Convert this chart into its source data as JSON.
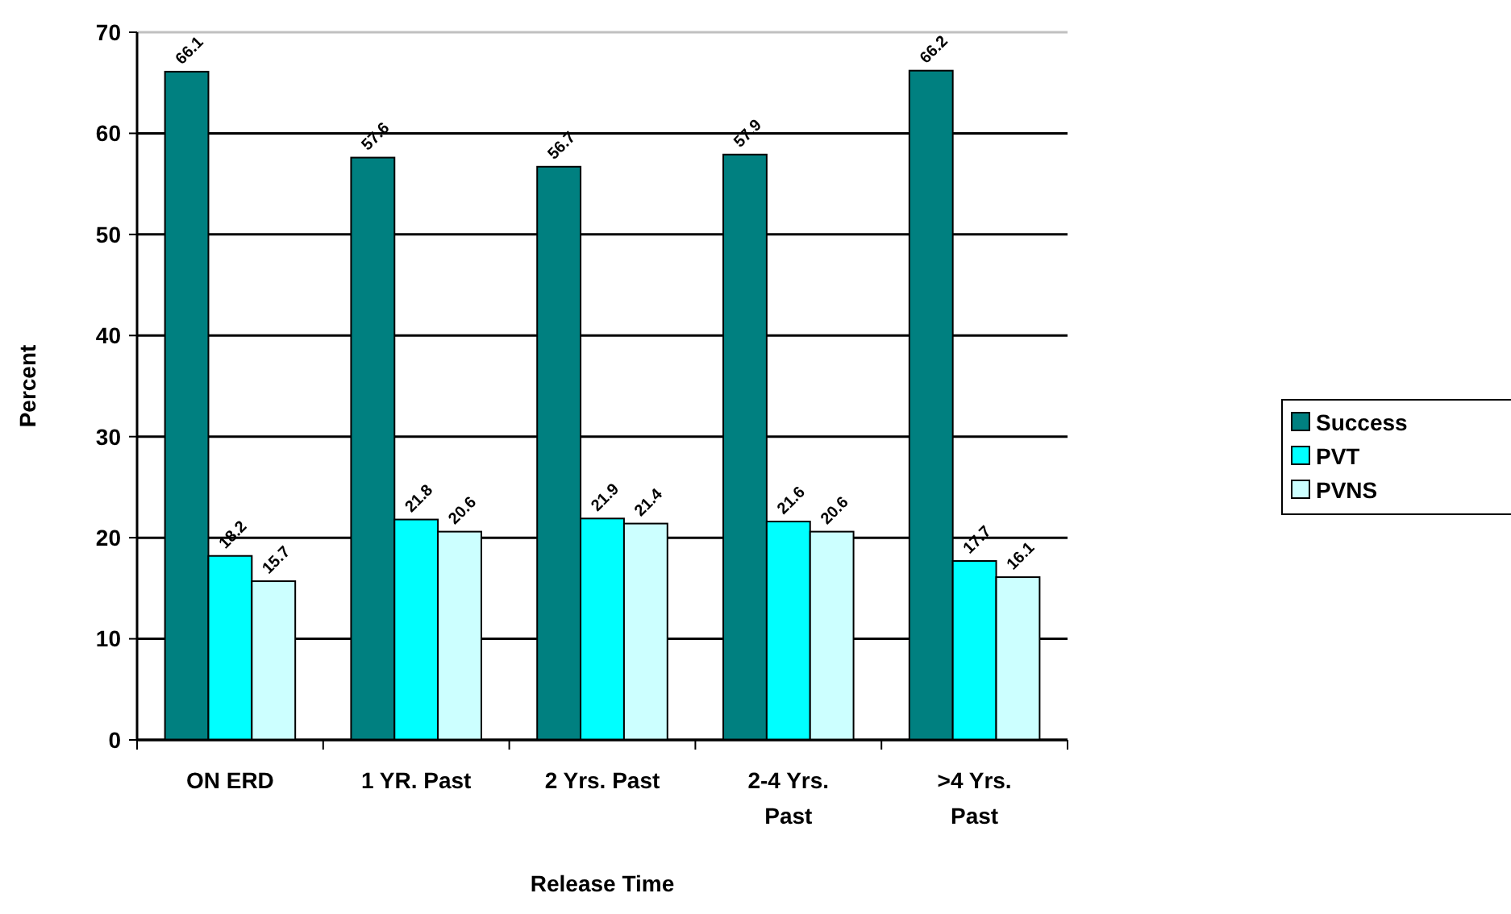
{
  "chart_data": {
    "type": "bar",
    "xlabel": "Release Time",
    "ylabel": "Percent",
    "categories": [
      "ON ERD",
      "1 YR. Past",
      "2 Yrs. Past",
      "2-4 Yrs. Past",
      ">4 Yrs. Past"
    ],
    "series": [
      {
        "name": "Success",
        "color": "#008080",
        "values": [
          66.1,
          57.6,
          56.7,
          57.9,
          66.2
        ]
      },
      {
        "name": "PVT",
        "color": "#00ffff",
        "values": [
          18.2,
          21.8,
          21.9,
          21.6,
          17.7
        ]
      },
      {
        "name": "PVNS",
        "color": "#ccffff",
        "values": [
          15.7,
          20.6,
          21.4,
          20.6,
          16.1
        ]
      }
    ],
    "ylim": [
      0,
      70
    ],
    "yticks": [
      0,
      10,
      20,
      30,
      40,
      50,
      60,
      70
    ],
    "grid": "y",
    "legend": "right",
    "data_labels": true
  }
}
